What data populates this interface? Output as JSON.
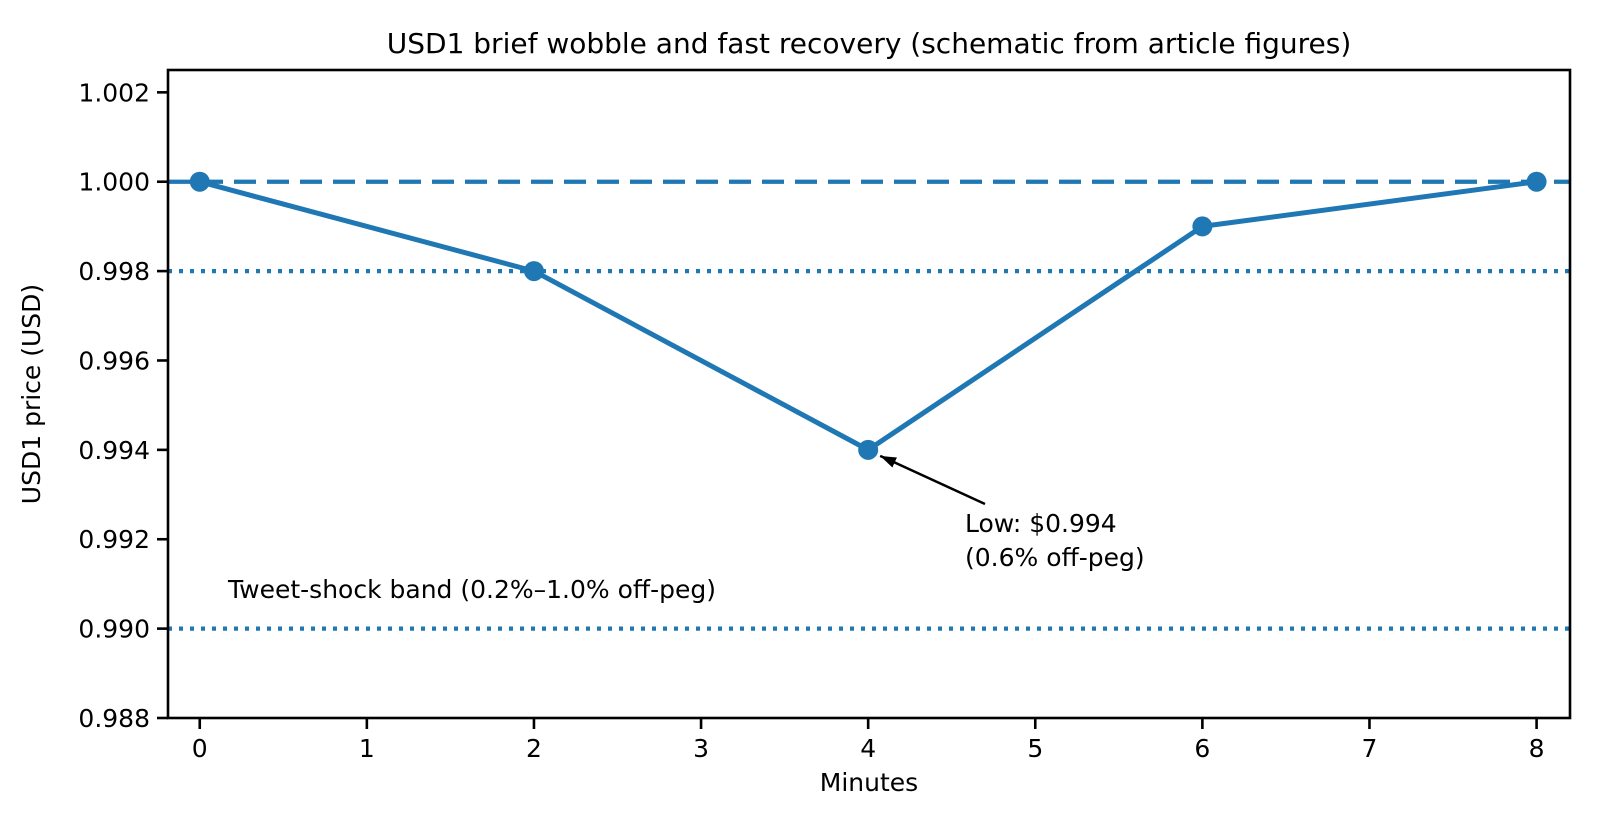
{
  "figure": {
    "background": "#ffffff"
  },
  "chart_data": {
    "type": "line",
    "title": "USD1 brief wobble and fast recovery (schematic from article figures)",
    "xlabel": "Minutes",
    "ylabel": "USD1 price (USD)",
    "x": [
      0,
      2,
      4,
      6,
      8
    ],
    "y": [
      1.0,
      0.998,
      0.994,
      0.999,
      1.0
    ],
    "series_name": "USD1 price",
    "x_ticks": [
      0,
      1,
      2,
      3,
      4,
      5,
      6,
      7,
      8
    ],
    "y_ticks": [
      0.988,
      0.99,
      0.992,
      0.994,
      0.996,
      0.998,
      1.0,
      1.002
    ],
    "y_tick_decimals": 3,
    "xlim": [
      -0.19,
      8.2
    ],
    "ylim": [
      0.988,
      1.0025
    ],
    "grid": false,
    "legend": null,
    "marker": "circle",
    "marker_size": 10,
    "colors": {
      "series": "#1f77b4",
      "reference": "#1f77b4",
      "axis": "#000000",
      "annotation_arrow": "#000000"
    },
    "reference_lines": [
      {
        "value": 1.0,
        "style": "dashed"
      },
      {
        "value": 0.998,
        "style": "dotted"
      },
      {
        "value": 0.99,
        "style": "dotted"
      }
    ],
    "annotations": [
      {
        "text_lines": [
          "Low: $0.994",
          "(0.6% off-peg)"
        ],
        "arrow_to": {
          "x": 4,
          "y": 0.994
        }
      },
      {
        "text": "Tweet-shock band (0.2%–1.0% off-peg)"
      }
    ]
  }
}
